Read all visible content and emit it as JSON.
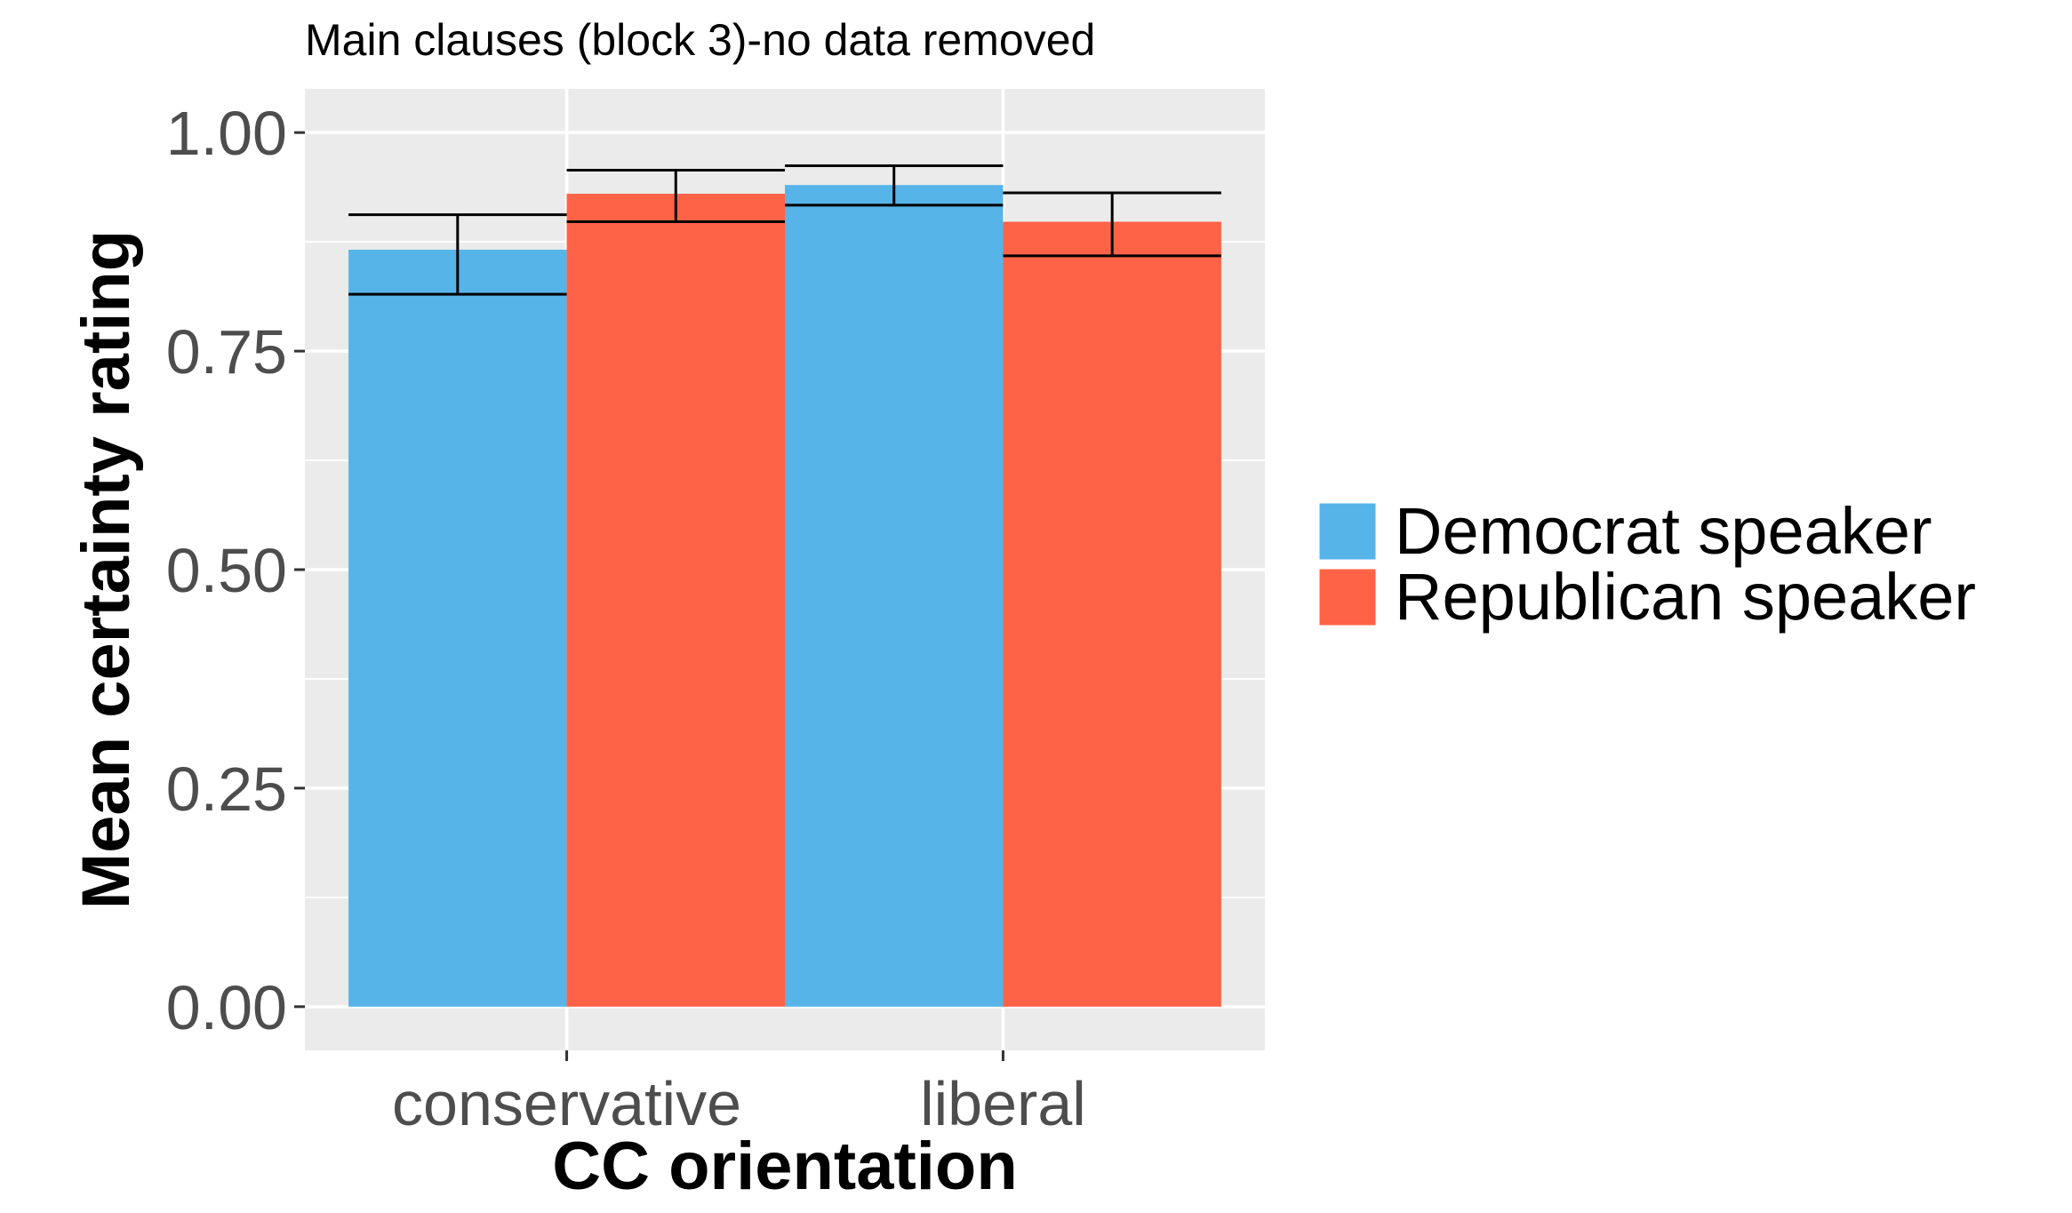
{
  "chart_data": {
    "type": "bar",
    "title": "Main clauses (block 3)-no data removed",
    "xlabel": "CC orientation",
    "ylabel": "Mean certainty rating",
    "categories": [
      "conservative",
      "liberal"
    ],
    "series": [
      {
        "name": "Democrat speaker",
        "color": "#56b4e9",
        "values": [
          0.866,
          0.94
        ],
        "err_low": [
          0.815,
          0.917
        ],
        "err_high": [
          0.906,
          0.962
        ]
      },
      {
        "name": "Republican speaker",
        "color": "#ff6347",
        "values": [
          0.93,
          0.898
        ],
        "err_low": [
          0.898,
          0.859
        ],
        "err_high": [
          0.957,
          0.931
        ]
      }
    ],
    "ylim": [
      -0.05,
      1.05
    ],
    "yticks": [
      0.0,
      0.25,
      0.5,
      0.75,
      1.0
    ],
    "ytick_labels": [
      "0.00",
      "0.25",
      "0.50",
      "0.75",
      "1.00"
    ],
    "grid": true,
    "legend_position": "right",
    "panel_background": "#ebebeb"
  }
}
